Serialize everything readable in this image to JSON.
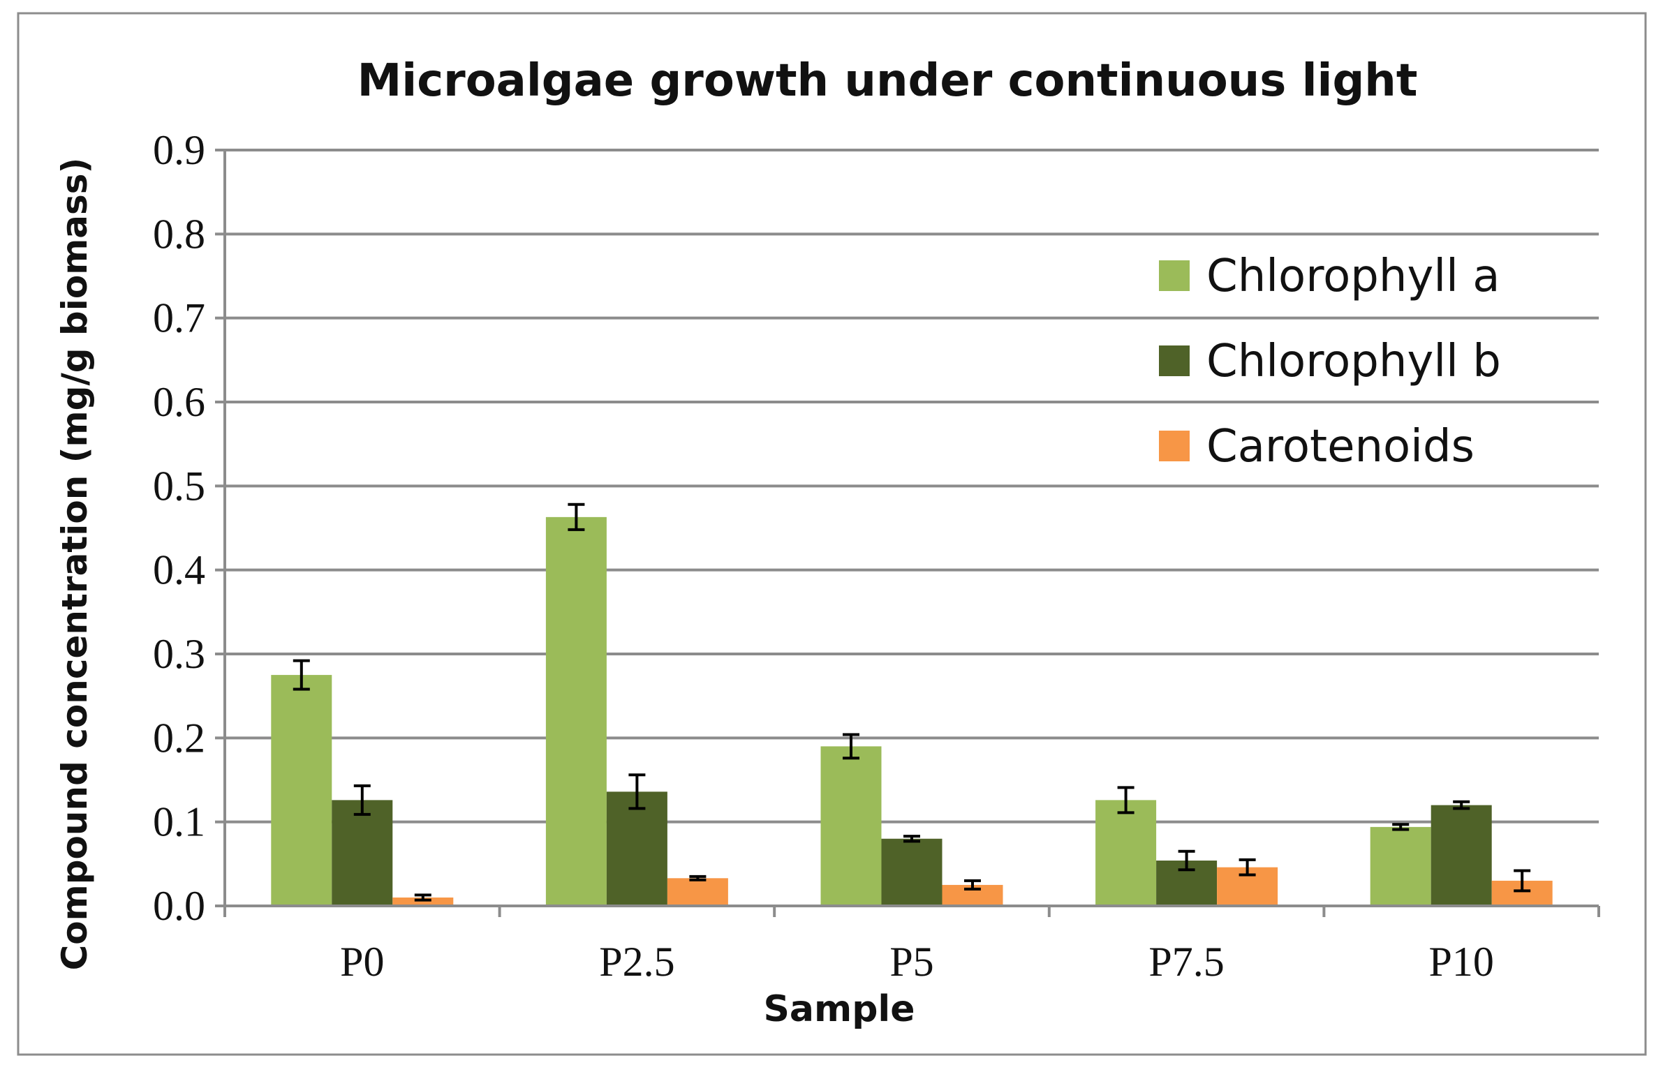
{
  "chart_data": {
    "type": "bar",
    "title": "Microalgae growth under continuous light",
    "xlabel": "Sample",
    "ylabel": "Compound concentration (mg/g biomass)",
    "categories": [
      "P0",
      "P2.5",
      "P5",
      "P7.5",
      "P10"
    ],
    "ylim": [
      0,
      0.9
    ],
    "yticks": [
      0.0,
      0.1,
      0.2,
      0.3,
      0.4,
      0.5,
      0.6,
      0.7,
      0.8,
      0.9
    ],
    "ytick_labels": [
      "0.0",
      "0.1",
      "0.2",
      "0.3",
      "0.4",
      "0.5",
      "0.6",
      "0.7",
      "0.8",
      "0.9"
    ],
    "grid": true,
    "legend_position": "top-right",
    "series": [
      {
        "name": "Chlorophyll a",
        "color": "#9bbb59",
        "values": [
          0.275,
          0.463,
          0.19,
          0.126,
          0.094
        ],
        "errors": [
          0.017,
          0.015,
          0.014,
          0.015,
          0.003
        ]
      },
      {
        "name": "Chlorophyll b",
        "color": "#4f6228",
        "values": [
          0.126,
          0.136,
          0.08,
          0.054,
          0.12
        ],
        "errors": [
          0.017,
          0.02,
          0.003,
          0.011,
          0.004
        ]
      },
      {
        "name": "Carotenoids",
        "color": "#f79646",
        "values": [
          0.01,
          0.033,
          0.025,
          0.046,
          0.03
        ],
        "errors": [
          0.003,
          0.002,
          0.005,
          0.009,
          0.012
        ]
      }
    ]
  }
}
